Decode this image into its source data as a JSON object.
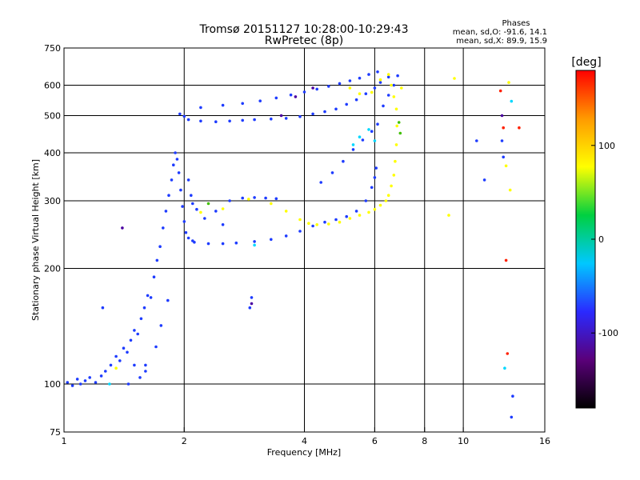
{
  "chart_data": {
    "type": "scatter",
    "title": "Tromsø 20151127 10:28:00-10:29:43",
    "subtitle": "RwPretec (8p)",
    "xlabel": "Frequency [MHz]",
    "ylabel": "Stationary phase Virtual Height [km]",
    "x_scale": "log",
    "y_scale": "log",
    "xlim": [
      1,
      16
    ],
    "ylim": [
      75,
      750
    ],
    "x_ticks": [
      1,
      2,
      4,
      6,
      8,
      10,
      16
    ],
    "x_tick_labels": [
      "1",
      "2",
      "4",
      "6",
      "8",
      "10",
      "16"
    ],
    "y_ticks": [
      75,
      100,
      200,
      300,
      400,
      500,
      600,
      750
    ],
    "y_tick_labels": [
      "75",
      "100",
      "200",
      "300",
      "400",
      "500",
      "600",
      "750"
    ],
    "x_gridlines": [
      2,
      4,
      6,
      8,
      10
    ],
    "y_gridlines": [
      100,
      200,
      300,
      400,
      500,
      600
    ],
    "grid": true,
    "stats": {
      "header": "Phases",
      "line_o": "mean, sd,O: -91.6, 14.1",
      "line_x": "mean, sd,X:  89.9, 15.9"
    },
    "colorbar": {
      "label": "[deg]",
      "range": [
        -180,
        180
      ],
      "ticks": [
        -100,
        0,
        100
      ],
      "tick_labels": [
        "-100",
        "0",
        "100"
      ],
      "colormap": [
        "#000000",
        "#5a007a",
        "#2a2aff",
        "#00c8ff",
        "#00d040",
        "#ffff00",
        "#ff9a00",
        "#ff0000"
      ]
    },
    "series": [
      {
        "marker_color": "#1e3cff",
        "points": [
          [
            1.02,
            101
          ],
          [
            1.05,
            99
          ],
          [
            1.08,
            103
          ],
          [
            1.1,
            100
          ],
          [
            1.13,
            102
          ],
          [
            1.16,
            104
          ],
          [
            1.2,
            101
          ],
          [
            1.24,
            105
          ],
          [
            1.27,
            108
          ],
          [
            1.31,
            112
          ],
          [
            1.35,
            118
          ],
          [
            1.38,
            115
          ],
          [
            1.41,
            124
          ],
          [
            1.44,
            121
          ],
          [
            1.47,
            130
          ],
          [
            1.5,
            138
          ],
          [
            1.53,
            135
          ],
          [
            1.56,
            148
          ],
          [
            1.59,
            158
          ],
          [
            1.62,
            170
          ],
          [
            1.65,
            168
          ],
          [
            1.68,
            190
          ],
          [
            1.71,
            210
          ],
          [
            1.74,
            228
          ],
          [
            1.77,
            255
          ],
          [
            1.8,
            282
          ],
          [
            1.83,
            310
          ],
          [
            1.86,
            340
          ],
          [
            1.88,
            372
          ],
          [
            1.9,
            400
          ],
          [
            1.92,
            385
          ],
          [
            1.94,
            355
          ],
          [
            1.96,
            320
          ],
          [
            1.98,
            290
          ],
          [
            2.0,
            265
          ],
          [
            2.02,
            248
          ],
          [
            2.05,
            240
          ],
          [
            2.1,
            236
          ],
          [
            1.45,
            100
          ],
          [
            1.55,
            104
          ],
          [
            1.6,
            112
          ],
          [
            1.7,
            125
          ],
          [
            1.75,
            142
          ],
          [
            1.82,
            165
          ],
          [
            1.6,
            108
          ],
          [
            1.5,
            112
          ],
          [
            2.05,
            340
          ],
          [
            2.08,
            310
          ],
          [
            2.1,
            295
          ],
          [
            2.15,
            285
          ],
          [
            2.25,
            270
          ],
          [
            2.4,
            282
          ],
          [
            2.6,
            300
          ],
          [
            2.8,
            305
          ],
          [
            3.0,
            306
          ],
          [
            3.2,
            305
          ],
          [
            3.4,
            304
          ],
          [
            2.12,
            234
          ],
          [
            2.3,
            232
          ],
          [
            2.5,
            232
          ],
          [
            2.7,
            233
          ],
          [
            3.0,
            235
          ],
          [
            3.3,
            238
          ],
          [
            3.6,
            243
          ],
          [
            3.9,
            250
          ],
          [
            4.2,
            258
          ],
          [
            4.5,
            264
          ],
          [
            4.8,
            268
          ],
          [
            5.1,
            273
          ],
          [
            5.4,
            282
          ],
          [
            5.7,
            300
          ],
          [
            5.9,
            325
          ],
          [
            6.0,
            345
          ],
          [
            6.05,
            365
          ],
          [
            1.95,
            505
          ],
          [
            2.0,
            498
          ],
          [
            2.05,
            488
          ],
          [
            2.2,
            484
          ],
          [
            2.4,
            482
          ],
          [
            2.6,
            484
          ],
          [
            2.8,
            486
          ],
          [
            3.0,
            488
          ],
          [
            3.3,
            490
          ],
          [
            3.6,
            492
          ],
          [
            3.9,
            497
          ],
          [
            4.2,
            505
          ],
          [
            4.5,
            512
          ],
          [
            4.8,
            520
          ],
          [
            5.1,
            535
          ],
          [
            5.4,
            550
          ],
          [
            5.7,
            570
          ],
          [
            6.0,
            590
          ],
          [
            6.2,
            610
          ],
          [
            6.5,
            630
          ],
          [
            2.2,
            525
          ],
          [
            2.5,
            532
          ],
          [
            2.8,
            538
          ],
          [
            3.1,
            546
          ],
          [
            3.4,
            556
          ],
          [
            3.7,
            566
          ],
          [
            4.0,
            576
          ],
          [
            4.3,
            586
          ],
          [
            4.6,
            596
          ],
          [
            4.9,
            606
          ],
          [
            5.2,
            616
          ],
          [
            5.5,
            626
          ],
          [
            5.8,
            640
          ],
          [
            6.1,
            650
          ],
          [
            4.4,
            335
          ],
          [
            4.7,
            355
          ],
          [
            5.0,
            380
          ],
          [
            5.3,
            408
          ],
          [
            5.6,
            432
          ],
          [
            5.9,
            455
          ],
          [
            6.1,
            475
          ],
          [
            6.3,
            530
          ],
          [
            6.5,
            565
          ],
          [
            6.7,
            600
          ],
          [
            6.85,
            635
          ],
          [
            10.8,
            430
          ],
          [
            11.3,
            340
          ],
          [
            12.5,
            430
          ],
          [
            12.6,
            390
          ],
          [
            13.2,
            82
          ],
          [
            13.3,
            93
          ],
          [
            2.95,
            168
          ],
          [
            2.92,
            158
          ],
          [
            2.5,
            260
          ],
          [
            1.25,
            158
          ]
        ]
      },
      {
        "marker_color": "#ffff00",
        "points": [
          [
            2.2,
            280
          ],
          [
            2.5,
            286
          ],
          [
            2.9,
            303
          ],
          [
            3.3,
            295
          ],
          [
            3.6,
            282
          ],
          [
            3.9,
            268
          ],
          [
            4.1,
            262
          ],
          [
            4.3,
            260
          ],
          [
            4.6,
            261
          ],
          [
            4.9,
            264
          ],
          [
            5.2,
            270
          ],
          [
            5.5,
            275
          ],
          [
            5.8,
            280
          ],
          [
            6.0,
            285
          ],
          [
            6.2,
            292
          ],
          [
            6.4,
            300
          ],
          [
            6.5,
            310
          ],
          [
            6.6,
            328
          ],
          [
            6.7,
            350
          ],
          [
            6.75,
            380
          ],
          [
            6.8,
            420
          ],
          [
            6.82,
            470
          ],
          [
            6.8,
            520
          ],
          [
            6.7,
            560
          ],
          [
            6.6,
            600
          ],
          [
            6.5,
            640
          ],
          [
            5.2,
            590
          ],
          [
            5.5,
            570
          ],
          [
            5.9,
            575
          ],
          [
            6.2,
            620
          ],
          [
            7.0,
            590
          ],
          [
            9.5,
            625
          ],
          [
            9.2,
            275
          ],
          [
            13.0,
            610
          ],
          [
            12.8,
            370
          ],
          [
            13.1,
            320
          ],
          [
            1.35,
            110
          ]
        ]
      },
      {
        "marker_color": "#00d8ff",
        "points": [
          [
            5.3,
            420
          ],
          [
            5.5,
            440
          ],
          [
            5.8,
            460
          ],
          [
            6.0,
            430
          ],
          [
            3.0,
            230
          ],
          [
            13.2,
            545
          ],
          [
            12.7,
            110
          ],
          [
            1.3,
            100
          ]
        ]
      },
      {
        "marker_color": "#40c000",
        "points": [
          [
            6.9,
            480
          ],
          [
            6.95,
            450
          ],
          [
            2.3,
            295
          ]
        ]
      },
      {
        "marker_color": "#ff2000",
        "points": [
          [
            12.4,
            580
          ],
          [
            12.6,
            465
          ],
          [
            13.8,
            465
          ],
          [
            12.9,
            120
          ],
          [
            12.8,
            210
          ]
        ]
      },
      {
        "marker_color": "#4a00a0",
        "points": [
          [
            3.5,
            500
          ],
          [
            3.8,
            560
          ],
          [
            4.2,
            590
          ],
          [
            2.95,
            162
          ],
          [
            1.4,
            255
          ],
          [
            12.5,
            500
          ]
        ]
      }
    ]
  }
}
